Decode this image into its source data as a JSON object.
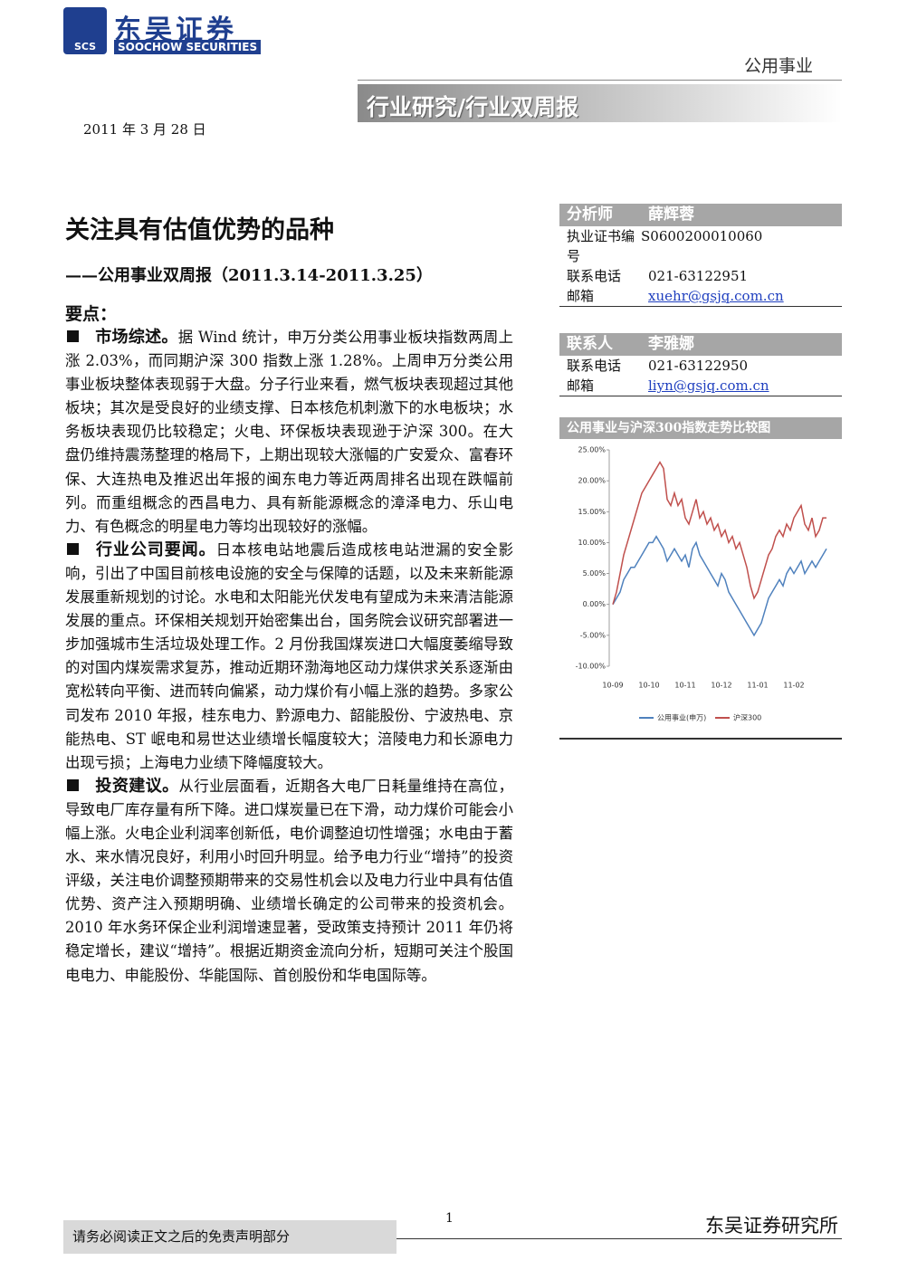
{
  "header": {
    "logo_abbr": "SCS",
    "logo_cn": "东吴证券",
    "logo_en": "SOOCHOW SECURITIES",
    "sector": "公用事业",
    "category": "行业研究/行业双周报"
  },
  "date": "2011 年 3 月 28 日",
  "title": "关注具有估值优势的品种",
  "subtitle": "——公用事业双周报（2011.3.14-2011.3.25）",
  "key_points_heading": "要点：",
  "sections": [
    {
      "heading": "市场综述。",
      "body": "据 Wind 统计，申万分类公用事业板块指数两周上涨 2.03%，而同期沪深 300 指数上涨 1.28%。上周申万分类公用事业板块整体表现弱于大盘。分子行业来看，燃气板块表现超过其他板块；其次是受良好的业绩支撑、日本核危机刺激下的水电板块；水务板块表现仍比较稳定；火电、环保板块表现逊于沪深 300。在大盘仍维持震荡整理的格局下，上期出现较大涨幅的广安爱众、富春环保、大连热电及推迟出年报的闽东电力等近两周排名出现在跌幅前列。而重组概念的西昌电力、具有新能源概念的漳泽电力、乐山电力、有色概念的明星电力等均出现较好的涨幅。"
    },
    {
      "heading": "行业公司要闻。",
      "body": "日本核电站地震后造成核电站泄漏的安全影响，引出了中国目前核电设施的安全与保障的话题，以及未来新能源发展重新规划的讨论。水电和太阳能光伏发电有望成为未来清洁能源发展的重点。环保相关规划开始密集出台，国务院会议研究部署进一步加强城市生活垃圾处理工作。2 月份我国煤炭进口大幅度萎缩导致的对国内煤炭需求复苏，推动近期环渤海地区动力煤供求关系逐渐由宽松转向平衡、进而转向偏紧，动力煤价有小幅上涨的趋势。多家公司发布 2010 年报，桂东电力、黔源电力、韶能股份、宁波热电、京能热电、ST 岷电和易世达业绩增长幅度较大；涪陵电力和长源电力出现亏损；上海电力业绩下降幅度较大。"
    },
    {
      "heading": "投资建议。",
      "body": "从行业层面看，近期各大电厂日耗量维持在高位，导致电厂库存量有所下降。进口煤炭量已在下滑，动力煤价可能会小幅上涨。火电企业利润率创新低，电价调整迫切性增强；水电由于蓄水、来水情况良好，利用小时回升明显。给予电力行业“增持”的投资评级，关注电价调整预期带来的交易性机会以及电力行业中具有估值优势、资产注入预期明确、业绩增长确定的公司带来的投资机会。2010 年水务环保企业利润增速显著，受政策支持预计 2011 年仍将稳定增长，建议“增持”。根据近期资金流向分析，短期可关注个股国电电力、申能股份、华能国际、首创股份和华电国际等。"
    }
  ],
  "analyst": {
    "header": [
      "分析师",
      "薛辉蓉"
    ],
    "rows": [
      [
        "执业证书编号",
        "S0600200010060"
      ],
      [
        "联系电话",
        "021-63122951"
      ],
      [
        "邮箱",
        "xuehr@gsjq.com.cn"
      ]
    ]
  },
  "contact": {
    "header": [
      "联系人",
      "李雅娜"
    ],
    "rows": [
      [
        "联系电话",
        "021-63122950"
      ],
      [
        "邮箱",
        "liyn@gsjq.com.cn"
      ]
    ]
  },
  "chart_data": {
    "type": "line",
    "title": "公用事业与沪深300指数走势比较图",
    "categories": [
      "10-09",
      null,
      null,
      null,
      null,
      null,
      null,
      null,
      null,
      null,
      "10-10",
      null,
      null,
      null,
      null,
      null,
      null,
      null,
      null,
      null,
      "10-11",
      null,
      null,
      null,
      null,
      null,
      null,
      null,
      null,
      null,
      "10-12",
      null,
      null,
      null,
      null,
      null,
      null,
      null,
      null,
      null,
      "11-01",
      null,
      null,
      null,
      null,
      null,
      null,
      null,
      null,
      null,
      "11-02",
      null,
      null,
      null,
      null,
      null,
      null,
      null,
      null,
      null
    ],
    "ylim": [
      -10,
      25
    ],
    "yticks": [
      {
        "value": 25,
        "label": "25.00%"
      },
      {
        "value": 20,
        "label": "20.00%"
      },
      {
        "value": 15,
        "label": "15.00%"
      },
      {
        "value": 10,
        "label": "10.00%"
      },
      {
        "value": 5,
        "label": "5.00%"
      },
      {
        "value": 0,
        "label": "0.00%"
      },
      {
        "value": -5,
        "label": "-5.00%"
      },
      {
        "value": -10,
        "label": "-10.00%"
      }
    ],
    "series": [
      {
        "name": "公用事业(申万)",
        "color": "#4f81bd",
        "values": [
          0,
          1,
          2,
          4,
          5,
          6,
          6,
          7,
          8,
          9,
          10,
          10,
          11,
          10,
          9,
          7,
          8,
          9,
          8,
          7,
          8,
          6,
          9,
          10,
          8,
          7,
          6,
          5,
          4,
          3,
          5,
          4,
          2,
          1,
          0,
          -1,
          -2,
          -3,
          -4,
          -5,
          -4,
          -3,
          -1,
          1,
          2,
          3,
          4,
          3,
          5,
          6,
          5,
          6,
          7,
          5,
          6,
          7,
          6,
          7,
          8,
          9
        ]
      },
      {
        "name": "沪深300",
        "color": "#c0504d",
        "values": [
          0,
          2,
          5,
          8,
          10,
          12,
          14,
          16,
          18,
          19,
          20,
          21,
          22,
          23,
          22,
          17,
          16,
          18,
          16,
          17,
          14,
          13,
          15,
          17,
          14,
          15,
          13,
          14,
          12,
          13,
          11,
          12,
          10,
          11,
          9,
          10,
          8,
          6,
          3,
          1,
          2,
          4,
          6,
          8,
          9,
          11,
          12,
          11,
          13,
          12,
          14,
          15,
          16,
          13,
          12,
          14,
          11,
          12,
          14,
          14
        ]
      }
    ]
  },
  "footer": {
    "disclaimer": "请务必阅读正文之后的免责声明部分",
    "page": "1",
    "institute": "东吴证券研究所"
  }
}
